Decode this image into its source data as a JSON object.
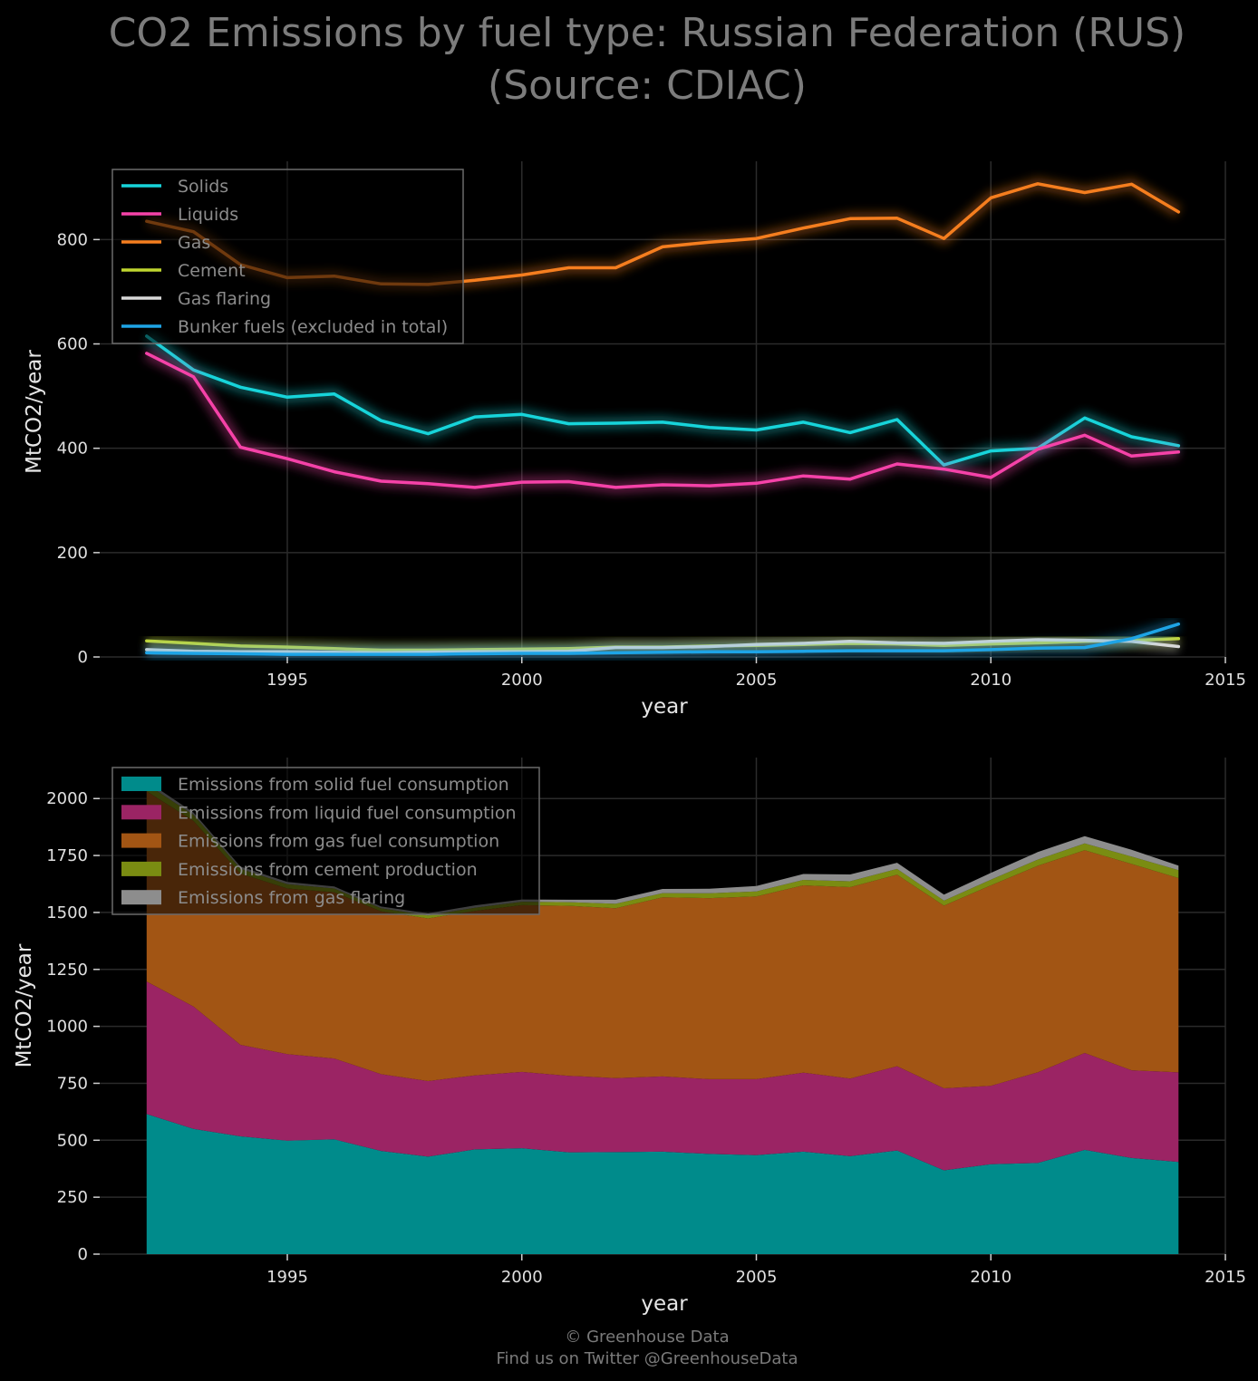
{
  "title": {
    "line1": "CO2 Emissions by fuel type: Russian Federation (RUS)",
    "line2": "(Source: CDIAC)"
  },
  "footer": {
    "line1": "© Greenhouse Data",
    "line2": "Find us on Twitter @GreenhouseData"
  },
  "colors": {
    "background": "#000000",
    "grid": "#2b2b2b",
    "solids": "#17d4da",
    "liquids": "#f542a8",
    "gas": "#f57e1f",
    "cement": "#bfd62f",
    "gas_flaring": "#d8d8d8",
    "bunker": "#1ea4e6",
    "area_solid": "#008b8b",
    "area_liquid": "#9b2464",
    "area_gas": "#a25514",
    "area_cement": "#7a8c12",
    "area_flaring": "#8d8d8d"
  },
  "chart_data": [
    {
      "type": "line",
      "xlabel": "year",
      "ylabel": "MtCO2/year",
      "xlim": [
        1991,
        2015
      ],
      "ylim": [
        0,
        950
      ],
      "xticks": [
        1995,
        2000,
        2005,
        2010,
        2015
      ],
      "yticks": [
        0,
        200,
        400,
        600,
        800
      ],
      "grid": true,
      "legend": "top-left",
      "x": [
        1992,
        1993,
        1994,
        1995,
        1996,
        1997,
        1998,
        1999,
        2000,
        2001,
        2002,
        2003,
        2004,
        2005,
        2006,
        2007,
        2008,
        2009,
        2010,
        2011,
        2012,
        2013,
        2014
      ],
      "series": [
        {
          "name": "Solids",
          "color_key": "solids",
          "values": [
            615,
            550,
            517,
            498,
            504,
            453,
            428,
            460,
            465,
            447,
            448,
            450,
            440,
            435,
            450,
            430,
            455,
            368,
            395,
            400,
            458,
            422,
            405
          ]
        },
        {
          "name": "Liquids",
          "color_key": "liquids",
          "values": [
            582,
            537,
            402,
            380,
            355,
            337,
            332,
            325,
            335,
            336,
            325,
            330,
            328,
            333,
            347,
            341,
            370,
            360,
            344,
            398,
            425,
            385,
            393
          ]
        },
        {
          "name": "Gas",
          "color_key": "gas",
          "values": [
            835,
            815,
            752,
            727,
            730,
            715,
            714,
            722,
            732,
            746,
            746,
            786,
            795,
            802,
            822,
            840,
            841,
            802,
            880,
            907,
            890,
            906,
            853
          ]
        },
        {
          "name": "Cement",
          "color_key": "cement",
          "values": [
            31,
            26,
            21,
            19,
            16,
            13,
            13,
            14,
            15,
            16,
            19,
            19,
            21,
            22,
            24,
            26,
            25,
            22,
            25,
            27,
            30,
            32,
            35
          ]
        },
        {
          "name": "Gas flaring",
          "color_key": "gas_flaring",
          "values": [
            14,
            11,
            10,
            10,
            9,
            8,
            9,
            10,
            10,
            11,
            18,
            18,
            20,
            24,
            26,
            30,
            27,
            26,
            30,
            33,
            32,
            30,
            20
          ]
        },
        {
          "name": "Bunker fuels (excluded in total)",
          "color_key": "bunker",
          "values": [
            8,
            7,
            6,
            5,
            5,
            5,
            5,
            6,
            7,
            7,
            8,
            9,
            10,
            10,
            11,
            12,
            12,
            12,
            14,
            17,
            18,
            35,
            63
          ]
        }
      ]
    },
    {
      "type": "area",
      "stacked": true,
      "xlabel": "year",
      "ylabel": "MtCO2/year",
      "xlim": [
        1991,
        2015
      ],
      "ylim": [
        0,
        2180
      ],
      "xticks": [
        1995,
        2000,
        2005,
        2010,
        2015
      ],
      "yticks": [
        0,
        250,
        500,
        750,
        1000,
        1250,
        1500,
        1750,
        2000
      ],
      "grid": true,
      "legend": "top-left",
      "x": [
        1992,
        1993,
        1994,
        1995,
        1996,
        1997,
        1998,
        1999,
        2000,
        2001,
        2002,
        2003,
        2004,
        2005,
        2006,
        2007,
        2008,
        2009,
        2010,
        2011,
        2012,
        2013,
        2014
      ],
      "series": [
        {
          "name": "Emissions from solid fuel consumption",
          "color_key": "area_solid",
          "values": [
            615,
            550,
            517,
            498,
            504,
            453,
            428,
            460,
            465,
            447,
            448,
            450,
            440,
            435,
            450,
            430,
            455,
            368,
            395,
            400,
            458,
            422,
            405
          ]
        },
        {
          "name": "Emissions from liquid fuel consumption",
          "color_key": "area_liquid",
          "values": [
            582,
            537,
            402,
            380,
            355,
            337,
            332,
            325,
            335,
            336,
            325,
            330,
            328,
            333,
            347,
            341,
            370,
            360,
            344,
            398,
            425,
            385,
            393
          ]
        },
        {
          "name": "Emissions from gas fuel consumption",
          "color_key": "area_gas",
          "values": [
            835,
            815,
            752,
            727,
            730,
            715,
            714,
            722,
            732,
            746,
            746,
            786,
            795,
            802,
            822,
            840,
            841,
            802,
            880,
            907,
            890,
            906,
            853
          ]
        },
        {
          "name": "Emissions from cement production",
          "color_key": "area_cement",
          "values": [
            31,
            26,
            21,
            19,
            16,
            13,
            13,
            14,
            15,
            16,
            19,
            19,
            21,
            22,
            24,
            26,
            25,
            22,
            25,
            27,
            30,
            32,
            35
          ]
        },
        {
          "name": "Emissions from gas flaring",
          "color_key": "area_flaring",
          "values": [
            14,
            11,
            10,
            10,
            9,
            8,
            9,
            10,
            10,
            11,
            18,
            18,
            20,
            24,
            26,
            30,
            27,
            26,
            30,
            33,
            32,
            30,
            20
          ]
        }
      ]
    }
  ]
}
